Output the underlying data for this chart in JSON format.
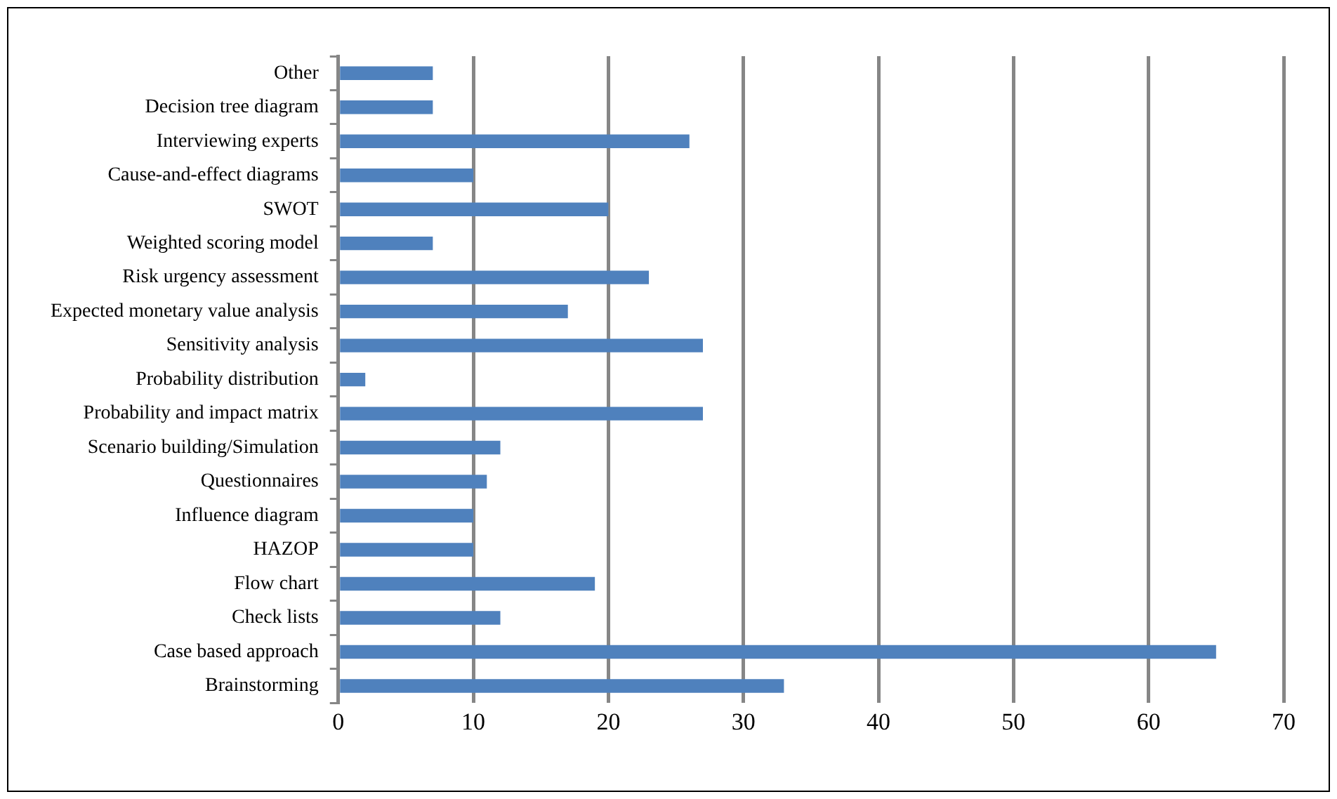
{
  "chart_data": {
    "type": "bar",
    "orientation": "horizontal",
    "categories": [
      "Other",
      "Decision tree diagram",
      "Interviewing experts",
      "Cause-and-effect diagrams",
      "SWOT",
      "Weighted scoring model",
      "Risk urgency assessment",
      "Expected monetary value analysis",
      "Sensitivity analysis",
      "Probability distribution",
      "Probability and impact matrix",
      "Scenario building/Simulation",
      "Questionnaires",
      "Influence diagram",
      "HAZOP",
      "Flow chart",
      "Check lists",
      "Case based approach",
      "Brainstorming"
    ],
    "values": [
      7,
      7,
      26,
      10,
      20,
      7,
      23,
      17,
      27,
      2,
      27,
      12,
      11,
      10,
      10,
      19,
      12,
      65,
      33
    ],
    "color": "#4f81bd",
    "xlim": [
      0,
      70
    ],
    "xticks": [
      0,
      10,
      20,
      30,
      40,
      50,
      60,
      70
    ],
    "grid": "x",
    "legend": false
  }
}
